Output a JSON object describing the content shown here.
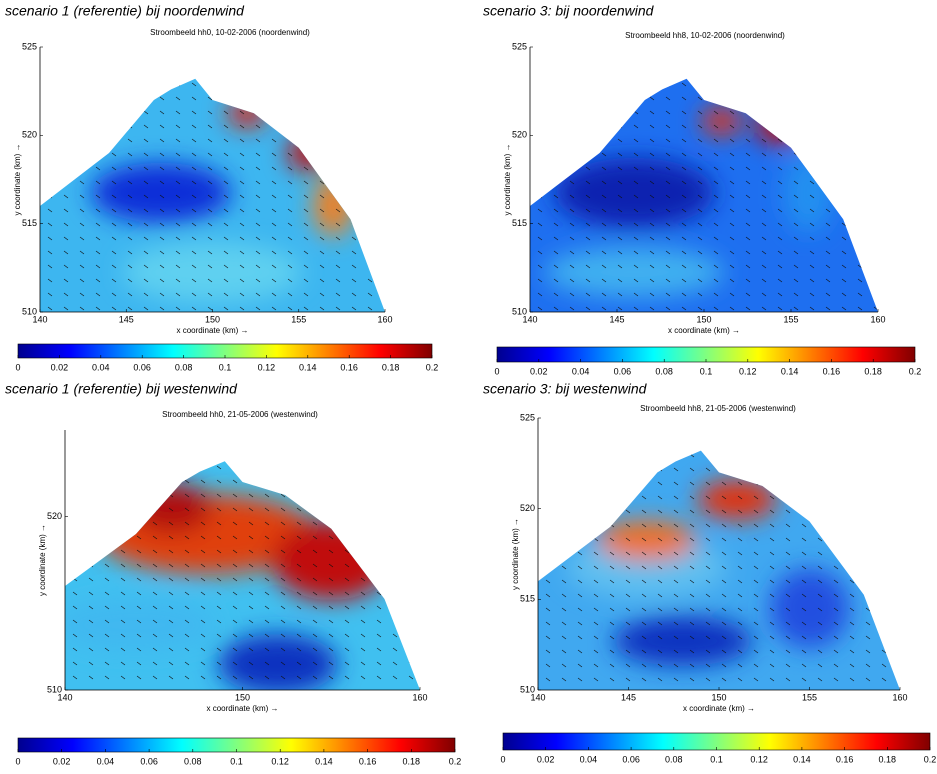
{
  "chart_data": [
    {
      "type": "heatmap",
      "caption": "scenario 1 (referentie) bij noordenwind",
      "title": "Stroombeeld hh0, 10-02-2006 (noordenwind)",
      "xlabel": "x coordinate (km) →",
      "ylabel": "y coordinate (km) →",
      "xlim": [
        140,
        160
      ],
      "ylim": [
        510,
        525
      ],
      "xticks": [
        140,
        145,
        150,
        155,
        160
      ],
      "yticks": [
        510,
        515,
        520,
        525
      ],
      "colormap": "jet",
      "clim": [
        0,
        0.2
      ],
      "cticks": [
        0,
        0.02,
        0.04,
        0.06,
        0.08,
        0.1,
        0.12,
        0.14,
        0.16,
        0.18,
        0.2
      ]
    },
    {
      "type": "heatmap",
      "caption": "scenario 3: bij noordenwind",
      "title": "Stroombeeld hh8, 10-02-2006 (noordenwind)",
      "xlabel": "x coordinate (km) →",
      "ylabel": "y coordinate (km) →",
      "xlim": [
        140,
        160
      ],
      "ylim": [
        510,
        525
      ],
      "xticks": [
        140,
        145,
        150,
        155,
        160
      ],
      "yticks": [
        510,
        515,
        520,
        525
      ],
      "colormap": "jet",
      "clim": [
        0,
        0.2
      ],
      "cticks": [
        0,
        0.02,
        0.04,
        0.06,
        0.08,
        0.1,
        0.12,
        0.14,
        0.16,
        0.18,
        0.2
      ]
    },
    {
      "type": "heatmap",
      "caption": "scenario 1 (referentie) bij westenwind",
      "title": "Stroombeeld hh0, 21-05-2006 (westenwind)",
      "xlabel": "x coordinate (km) →",
      "ylabel": "y coordinate (km) →",
      "xlim": [
        140,
        160
      ],
      "ylim": [
        510,
        525
      ],
      "xticks": [
        140,
        150,
        160
      ],
      "yticks": [
        510,
        520
      ],
      "colormap": "jet",
      "clim": [
        0,
        0.2
      ],
      "cticks": [
        0,
        0.02,
        0.04,
        0.06,
        0.08,
        0.1,
        0.12,
        0.14,
        0.16,
        0.18,
        0.2
      ]
    },
    {
      "type": "heatmap",
      "caption": "scenario 3: bij westenwind",
      "title": "Stroombeeld hh8, 21-05-2006 (westenwind)",
      "xlabel": "x coordinate (km) →",
      "ylabel": "y coordinate (km) →",
      "xlim": [
        140,
        160
      ],
      "ylim": [
        510,
        525
      ],
      "xticks": [
        140,
        145,
        150,
        155,
        160
      ],
      "yticks": [
        510,
        515,
        520,
        525
      ],
      "colormap": "jet",
      "clim": [
        0,
        0.2
      ],
      "cticks": [
        0,
        0.02,
        0.04,
        0.06,
        0.08,
        0.1,
        0.12,
        0.14,
        0.16,
        0.18,
        0.2
      ]
    }
  ]
}
